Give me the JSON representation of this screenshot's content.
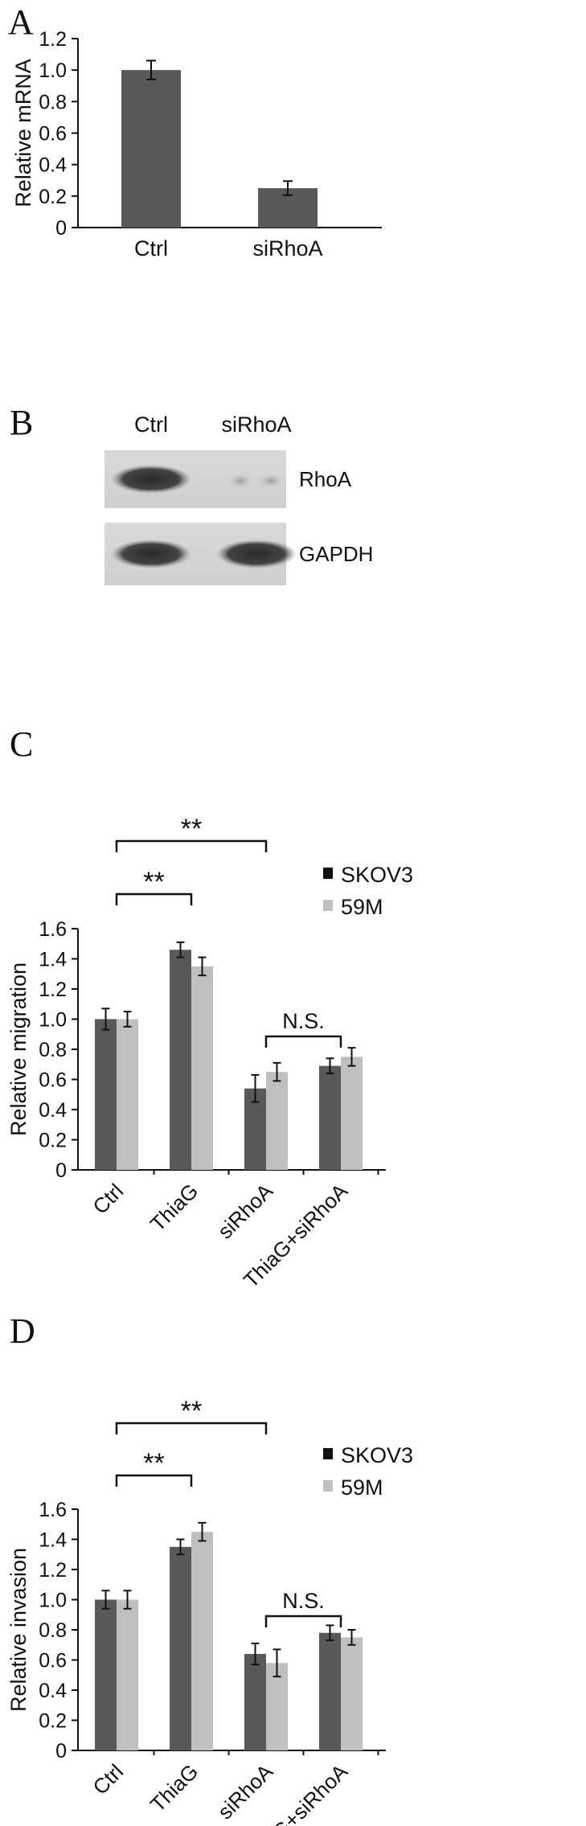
{
  "panels": {
    "A": {
      "letter": "A"
    },
    "B": {
      "letter": "B",
      "lanes": [
        "Ctrl",
        "siRhoA"
      ],
      "rows": [
        "RhoA",
        "GAPDH"
      ],
      "band_intensity": {
        "RhoA": [
          1.0,
          0.15
        ],
        "GAPDH": [
          1.0,
          1.0
        ]
      }
    },
    "C": {
      "letter": "C"
    },
    "D": {
      "letter": "D"
    }
  },
  "colors": {
    "series1": "#595959",
    "series2": "#bfbfbf",
    "axis": "#111111"
  },
  "chart_data": [
    {
      "id": "A",
      "type": "bar",
      "categories": [
        "Ctrl",
        "siRhoA"
      ],
      "values": [
        1.0,
        0.25
      ],
      "errors": [
        0.06,
        0.045
      ],
      "ylabel": "Relative mRNA",
      "ylim": [
        0,
        1.2
      ],
      "yticks": [
        "0",
        "0.2",
        "0.4",
        "0.6",
        "0.8",
        "1.0",
        "1.2"
      ]
    },
    {
      "id": "C",
      "type": "bar",
      "categories": [
        "Ctrl",
        "ThiaG",
        "siRhoA",
        "ThiaG+siRhoA"
      ],
      "series": [
        {
          "name": "SKOV3",
          "values": [
            1.0,
            1.46,
            0.54,
            0.69
          ],
          "errors": [
            0.07,
            0.05,
            0.09,
            0.05
          ]
        },
        {
          "name": "59M",
          "values": [
            1.0,
            1.35,
            0.65,
            0.75
          ],
          "errors": [
            0.05,
            0.06,
            0.06,
            0.06
          ]
        }
      ],
      "ylabel": "Relative migration",
      "ylim": [
        0,
        1.6
      ],
      "yticks": [
        "0",
        "0.2",
        "0.4",
        "0.6",
        "0.8",
        "1.0",
        "1.2",
        "1.4",
        "1.6"
      ],
      "annotations": [
        {
          "from": "Ctrl",
          "to": "siRhoA",
          "label": "**"
        },
        {
          "from": "Ctrl",
          "to": "ThiaG",
          "label": "**"
        },
        {
          "from": "siRhoA",
          "to": "ThiaG+siRhoA",
          "label": "N.S."
        }
      ],
      "legend": "top-right"
    },
    {
      "id": "D",
      "type": "bar",
      "categories": [
        "Ctrl",
        "ThiaG",
        "siRhoA",
        "ThiaG+siRhoA"
      ],
      "series": [
        {
          "name": "SKOV3",
          "values": [
            1.0,
            1.35,
            0.64,
            0.78
          ],
          "errors": [
            0.06,
            0.05,
            0.07,
            0.05
          ]
        },
        {
          "name": "59M",
          "values": [
            1.0,
            1.45,
            0.58,
            0.75
          ],
          "errors": [
            0.06,
            0.06,
            0.09,
            0.05
          ]
        }
      ],
      "ylabel": "Relative invasion",
      "ylim": [
        0,
        1.6
      ],
      "yticks": [
        "0",
        "0.2",
        "0.4",
        "0.6",
        "0.8",
        "1.0",
        "1.2",
        "1.4",
        "1.6"
      ],
      "annotations": [
        {
          "from": "Ctrl",
          "to": "siRhoA",
          "label": "**"
        },
        {
          "from": "Ctrl",
          "to": "ThiaG",
          "label": "**"
        },
        {
          "from": "siRhoA",
          "to": "ThiaG+siRhoA",
          "label": "N.S."
        }
      ],
      "legend": "top-right"
    }
  ]
}
